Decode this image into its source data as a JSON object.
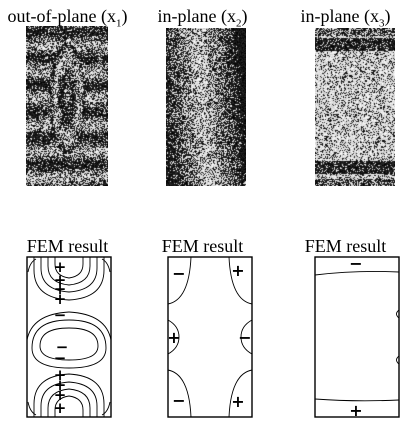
{
  "top_row": [
    {
      "label": "out-of-plane (x",
      "sub": "1",
      "close": ")"
    },
    {
      "label": "in-plane (x",
      "sub": "2",
      "close": ")"
    },
    {
      "label": "in-plane (x",
      "sub": "3",
      "close": ")"
    }
  ],
  "bottom_row": [
    {
      "label": "FEM result"
    },
    {
      "label": "FEM result"
    },
    {
      "label": "FEM result"
    }
  ],
  "signs": {
    "plus": "+",
    "minus": "−"
  }
}
